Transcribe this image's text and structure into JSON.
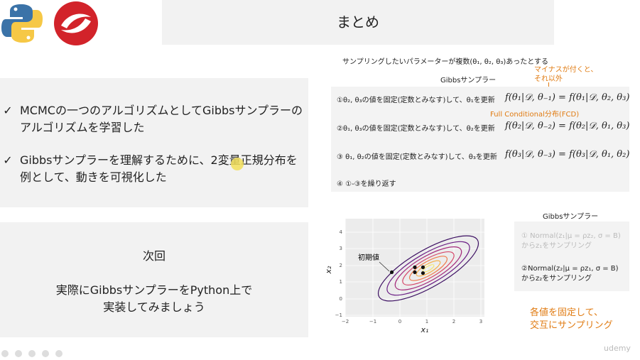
{
  "slide": {
    "title": "まとめ",
    "summary": {
      "check_glyph": "✓",
      "bullets": [
        "MCMCの一つのアルゴリズムとしてGibbsサンプラーのアルゴリズムを学習した",
        "Gibbsサンプラーを理解するために、2変量正規分布を例として、動きを可視化した"
      ]
    },
    "next": {
      "heading": "次回",
      "line1": "実際にGibbsサンプラーをPython上で",
      "line2": "実装してみましょう"
    },
    "explanation": {
      "intro": "サンプリングしたいパラメーターが複数(θ₁, θ₂, θ₃)あったとする",
      "gibbs_title": "Gibbsサンプラー",
      "note_minus_line1": "マイナスが付くと、",
      "note_minus_line2": "それ以外",
      "note_fcd": "Full Conditional分布(FCD)",
      "steps": [
        {
          "text": "①θ₂, θ₃の値を固定(定数とみなす)して、θ₁を更新",
          "formula": "f(θ₁|𝒟, θ₋₁) = f(θ₁|𝒟, θ₂, θ₃)"
        },
        {
          "text": "②θ₁, θ₃の値を固定(定数とみなす)して、θ₂を更新",
          "formula": "f(θ₂|𝒟, θ₋₂) = f(θ₂|𝒟, θ₁, θ₃)"
        },
        {
          "text": "③ θ₁, θ₂の値を固定(定数とみなす)して、θ₃を更新",
          "formula": "f(θ₃|𝒟, θ₋₃) = f(θ₃|𝒟, θ₁, θ₂)"
        },
        {
          "text": "④ ①-③を繰り返す",
          "formula": ""
        }
      ]
    },
    "plot": {
      "initial_label": "初期値",
      "x_axis_label": "x₁",
      "y_axis_label": "x₂",
      "x_ticks": [
        "−2",
        "−1",
        "0",
        "1",
        "2",
        "3"
      ],
      "y_ticks": [
        "4",
        "3",
        "2",
        "1",
        "0",
        "−1"
      ],
      "points": [
        {
          "x": -0.3,
          "y": 1.6
        },
        {
          "x": 0.55,
          "y": 1.9
        },
        {
          "x": 0.85,
          "y": 1.9
        },
        {
          "x": 0.55,
          "y": 1.6
        },
        {
          "x": 0.85,
          "y": 1.55
        }
      ]
    },
    "gibbs2": {
      "title": "Gibbsサンプラー",
      "step1_line1": "① Normal(z₁|μ = ρz₂, σ = B)",
      "step1_line2": "からz₁をサンプリング",
      "step2_line1": "②Normal(z₂|μ = ρz₁, σ = B)",
      "step2_line2": "からz₂をサンプリング"
    },
    "bottom_note_line1": "各値を固定して、",
    "bottom_note_line2": "交互にサンプリング",
    "watermark": "udemy"
  },
  "colors": {
    "accent_orange": "#e07b12",
    "panel_gray": "#f2f2f2",
    "python_blue": "#3b73a8",
    "python_yellow": "#f6c846",
    "logo_red": "#d2232a"
  }
}
